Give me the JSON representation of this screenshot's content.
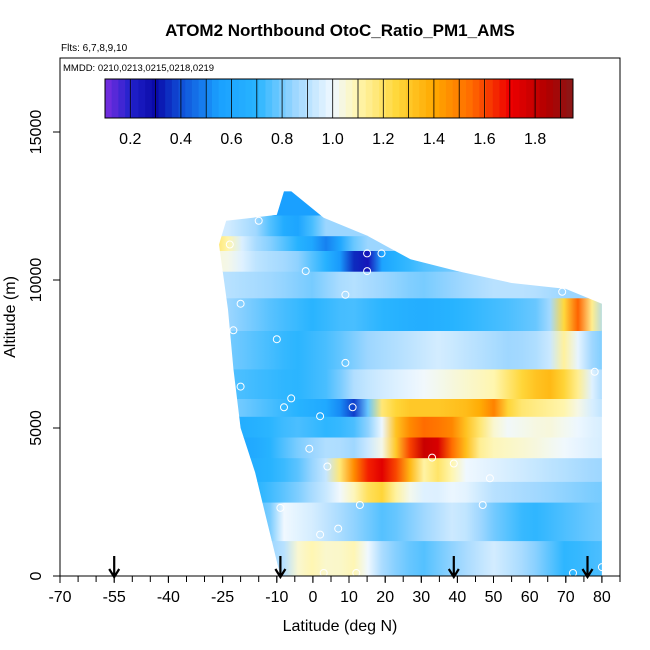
{
  "chart_data": {
    "type": "heatmap",
    "title": "ATOM2 Northbound OtoC_Ratio_PM1_AMS",
    "subtitle": "Flts: 6,7,8,9,10",
    "annotation": "MMDD: 0210,0213,0215,0218,0219",
    "xlabel": "Latitude (deg N)",
    "ylabel": "Altitude (m)",
    "xlim": [
      -70,
      85
    ],
    "ylim": [
      0,
      17500
    ],
    "xticks": [
      -70,
      -55,
      -40,
      -25,
      -10,
      0,
      10,
      20,
      30,
      40,
      50,
      60,
      70,
      80
    ],
    "xtick_labels": [
      "-70",
      "-55",
      "-40",
      "-25",
      "-10",
      "0",
      "10",
      "20",
      "30",
      "40",
      "50",
      "60",
      "70",
      "80"
    ],
    "yticks": [
      0,
      5000,
      10000,
      15000
    ],
    "ytick_labels": [
      "0",
      "5000",
      "10000",
      "15000"
    ],
    "grid": false,
    "colorbar": {
      "range": [
        0.1,
        1.95
      ],
      "ticks": [
        0.2,
        0.4,
        0.6,
        0.8,
        1.0,
        1.2,
        1.4,
        1.6,
        1.8
      ],
      "tick_labels": [
        "0.2",
        "0.4",
        "0.6",
        "0.8",
        "1.0",
        "1.2",
        "1.4",
        "1.6",
        "1.8"
      ],
      "stops": [
        [
          0.1,
          "#7a2ee0"
        ],
        [
          0.2,
          "#2222cc"
        ],
        [
          0.3,
          "#0a0aa8"
        ],
        [
          0.4,
          "#1050d8"
        ],
        [
          0.55,
          "#1aa0ff"
        ],
        [
          0.7,
          "#28b4ff"
        ],
        [
          0.85,
          "#9cd6ff"
        ],
        [
          1.0,
          "#f0f8ff"
        ],
        [
          1.1,
          "#fff6b0"
        ],
        [
          1.25,
          "#ffd83c"
        ],
        [
          1.4,
          "#ffa800"
        ],
        [
          1.55,
          "#ff6a00"
        ],
        [
          1.7,
          "#ee0000"
        ],
        [
          1.85,
          "#b00000"
        ],
        [
          1.95,
          "#8a1818"
        ]
      ]
    },
    "envelope": {
      "left": [
        [
          -9,
          0
        ],
        [
          -13,
          2000
        ],
        [
          -16,
          3500
        ],
        [
          -20,
          5000
        ],
        [
          -22,
          7000
        ],
        [
          -23.5,
          9000
        ],
        [
          -26,
          11200
        ],
        [
          -24,
          12000
        ],
        [
          -10,
          12200
        ],
        [
          -8,
          13000
        ]
      ],
      "right": [
        [
          -6,
          13000
        ],
        [
          3,
          12100
        ],
        [
          15,
          11500
        ],
        [
          27,
          10700
        ],
        [
          40,
          10300
        ],
        [
          55,
          9900
        ],
        [
          70,
          9700
        ],
        [
          80,
          9200
        ],
        [
          80,
          0
        ]
      ]
    },
    "layers": [
      {
        "alt": [
          0,
          1200
        ],
        "values": [
          [
            -9,
            0.85
          ],
          [
            -5,
            1.05
          ],
          [
            0,
            1.1
          ],
          [
            5,
            1.05
          ],
          [
            12,
            1.1
          ],
          [
            20,
            0.85
          ],
          [
            30,
            0.75
          ],
          [
            40,
            0.85
          ],
          [
            50,
            0.95
          ],
          [
            60,
            0.85
          ],
          [
            70,
            0.7
          ],
          [
            80,
            0.75
          ]
        ]
      },
      {
        "alt": [
          1200,
          2500
        ],
        "values": [
          [
            -13,
            0.75
          ],
          [
            -8,
            1.0
          ],
          [
            0,
            0.95
          ],
          [
            10,
            0.85
          ],
          [
            20,
            0.75
          ],
          [
            30,
            0.85
          ],
          [
            40,
            0.95
          ],
          [
            50,
            0.8
          ],
          [
            60,
            0.7
          ],
          [
            70,
            0.75
          ],
          [
            80,
            0.8
          ]
        ]
      },
      {
        "alt": [
          2500,
          3200
        ],
        "values": [
          [
            -15,
            0.7
          ],
          [
            -5,
            0.8
          ],
          [
            5,
            0.95
          ],
          [
            12,
            1.1
          ],
          [
            18,
            1.3
          ],
          [
            25,
            1.05
          ],
          [
            32,
            0.95
          ],
          [
            40,
            1.0
          ],
          [
            50,
            0.9
          ],
          [
            65,
            0.85
          ],
          [
            80,
            0.8
          ]
        ]
      },
      {
        "alt": [
          3200,
          4000
        ],
        "values": [
          [
            -17,
            0.65
          ],
          [
            -5,
            0.75
          ],
          [
            5,
            0.95
          ],
          [
            10,
            1.4
          ],
          [
            15,
            1.65
          ],
          [
            20,
            1.75
          ],
          [
            25,
            1.5
          ],
          [
            30,
            1.1
          ],
          [
            35,
            1.2
          ],
          [
            42,
            1.0
          ],
          [
            55,
            0.95
          ],
          [
            80,
            0.85
          ]
        ]
      },
      {
        "alt": [
          4000,
          4700
        ],
        "values": [
          [
            -18,
            0.6
          ],
          [
            -5,
            0.8
          ],
          [
            5,
            0.9
          ],
          [
            12,
            0.85
          ],
          [
            20,
            1.05
          ],
          [
            26,
            1.55
          ],
          [
            30,
            1.8
          ],
          [
            35,
            1.75
          ],
          [
            40,
            1.45
          ],
          [
            47,
            1.1
          ],
          [
            60,
            1.05
          ],
          [
            80,
            0.95
          ]
        ]
      },
      {
        "alt": [
          4700,
          5400
        ],
        "values": [
          [
            -20,
            0.65
          ],
          [
            -5,
            0.75
          ],
          [
            5,
            0.7
          ],
          [
            12,
            0.75
          ],
          [
            18,
            0.9
          ],
          [
            24,
            1.4
          ],
          [
            30,
            1.55
          ],
          [
            38,
            1.5
          ],
          [
            44,
            1.25
          ],
          [
            52,
            1.0
          ],
          [
            65,
            1.05
          ],
          [
            80,
            0.95
          ]
        ]
      },
      {
        "alt": [
          5400,
          6000
        ],
        "values": [
          [
            -21,
            0.8
          ],
          [
            -5,
            0.7
          ],
          [
            5,
            0.6
          ],
          [
            12,
            0.35
          ],
          [
            18,
            1.15
          ],
          [
            25,
            1.3
          ],
          [
            35,
            1.3
          ],
          [
            45,
            1.35
          ],
          [
            50,
            1.5
          ],
          [
            55,
            1.2
          ],
          [
            70,
            1.1
          ],
          [
            80,
            0.9
          ]
        ]
      },
      {
        "alt": [
          6000,
          7000
        ],
        "values": [
          [
            -22,
            0.75
          ],
          [
            -5,
            0.7
          ],
          [
            5,
            0.75
          ],
          [
            12,
            0.9
          ],
          [
            20,
            0.95
          ],
          [
            30,
            1.0
          ],
          [
            40,
            1.05
          ],
          [
            50,
            1.1
          ],
          [
            60,
            1.3
          ],
          [
            66,
            1.35
          ],
          [
            72,
            1.2
          ],
          [
            80,
            0.85
          ]
        ]
      },
      {
        "alt": [
          7000,
          8300
        ],
        "values": [
          [
            -23,
            0.8
          ],
          [
            -5,
            0.7
          ],
          [
            5,
            0.75
          ],
          [
            15,
            0.85
          ],
          [
            25,
            0.9
          ],
          [
            35,
            0.95
          ],
          [
            45,
            0.9
          ],
          [
            55,
            0.85
          ],
          [
            65,
            0.9
          ],
          [
            70,
            1.15
          ],
          [
            75,
            0.9
          ],
          [
            80,
            0.8
          ]
        ]
      },
      {
        "alt": [
          8300,
          9400
        ],
        "values": [
          [
            -23.5,
            0.85
          ],
          [
            -10,
            0.75
          ],
          [
            0,
            0.7
          ],
          [
            10,
            0.75
          ],
          [
            20,
            0.7
          ],
          [
            30,
            0.65
          ],
          [
            40,
            0.7
          ],
          [
            55,
            0.75
          ],
          [
            65,
            0.8
          ],
          [
            70,
            1.3
          ],
          [
            73,
            1.6
          ],
          [
            80,
            0.85
          ]
        ]
      },
      {
        "alt": [
          9400,
          10300
        ],
        "values": [
          [
            -24,
            0.9
          ],
          [
            -10,
            0.85
          ],
          [
            0,
            0.8
          ],
          [
            10,
            0.9
          ],
          [
            20,
            0.85
          ],
          [
            30,
            0.8
          ],
          [
            40,
            0.85
          ],
          [
            50,
            0.9
          ],
          [
            60,
            0.9
          ],
          [
            70,
            0.85
          ],
          [
            80,
            0.85
          ]
        ]
      },
      {
        "alt": [
          10300,
          11000
        ],
        "values": [
          [
            -25,
            1.05
          ],
          [
            -15,
            0.9
          ],
          [
            -5,
            0.85
          ],
          [
            3,
            0.7
          ],
          [
            10,
            0.45
          ],
          [
            14,
            0.15
          ],
          [
            20,
            0.65
          ],
          [
            30,
            0.75
          ],
          [
            40,
            0.8
          ],
          [
            55,
            0.85
          ]
        ]
      },
      {
        "alt": [
          11000,
          11500
        ],
        "values": [
          [
            -26,
            1.2
          ],
          [
            -18,
            0.9
          ],
          [
            -10,
            0.8
          ],
          [
            0,
            0.6
          ],
          [
            5,
            0.45
          ],
          [
            10,
            0.75
          ],
          [
            14,
            0.85
          ]
        ]
      },
      {
        "alt": [
          11500,
          12200
        ],
        "values": [
          [
            -24,
            0.95
          ],
          [
            -15,
            0.85
          ],
          [
            -10,
            0.7
          ],
          [
            -5,
            0.55
          ],
          [
            0,
            0.75
          ],
          [
            3,
            0.85
          ]
        ]
      },
      {
        "alt": [
          12200,
          13000
        ],
        "values": [
          [
            -8,
            0.55
          ],
          [
            -6,
            0.55
          ]
        ]
      }
    ],
    "points": [
      [
        -15,
        12000
      ],
      [
        -23,
        11200
      ],
      [
        -2,
        10300
      ],
      [
        15,
        10900
      ],
      [
        19,
        10900
      ],
      [
        15,
        10300
      ],
      [
        9,
        9500
      ],
      [
        -20,
        9200
      ],
      [
        69,
        9600
      ],
      [
        -22,
        8300
      ],
      [
        -10,
        8000
      ],
      [
        9,
        7200
      ],
      [
        78,
        6900
      ],
      [
        -20,
        6400
      ],
      [
        -6,
        6000
      ],
      [
        -8,
        5700
      ],
      [
        2,
        5400
      ],
      [
        11,
        5700
      ],
      [
        -1,
        4300
      ],
      [
        4,
        3700
      ],
      [
        33,
        4000
      ],
      [
        39,
        3800
      ],
      [
        49,
        3300
      ],
      [
        13,
        2400
      ],
      [
        -9,
        2300
      ],
      [
        47,
        2400
      ],
      [
        7,
        1600
      ],
      [
        2,
        1400
      ],
      [
        80,
        300
      ],
      [
        72,
        100
      ],
      [
        3,
        100
      ],
      [
        12,
        100
      ]
    ],
    "arrows": [
      -55,
      -9,
      39,
      76
    ]
  }
}
